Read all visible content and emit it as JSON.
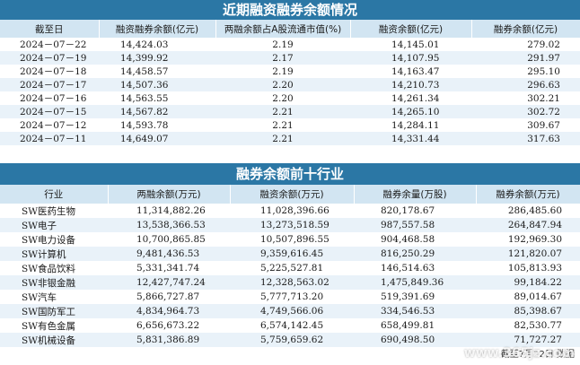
{
  "section1": {
    "title": "近期融资融券余额情况",
    "headers": [
      "截至日",
      "融资融券余额(亿元)",
      "两融余额占A股流通市值(%)",
      "融资余额(亿元)",
      "融券余额(亿元)"
    ],
    "rows": [
      [
        "2024－07－22",
        "14,424.03",
        "2.19",
        "14,145.01",
        "279.02"
      ],
      [
        "2024－07－19",
        "14,399.92",
        "2.17",
        "14,107.95",
        "291.97"
      ],
      [
        "2024－07－18",
        "14,458.57",
        "2.19",
        "14,163.47",
        "295.10"
      ],
      [
        "2024－07－17",
        "14,507.36",
        "2.20",
        "14,210.73",
        "296.63"
      ],
      [
        "2024－07－16",
        "14,563.55",
        "2.20",
        "14,261.34",
        "302.21"
      ],
      [
        "2024－07－15",
        "14,567.82",
        "2.21",
        "14,265.10",
        "302.72"
      ],
      [
        "2024－07－12",
        "14,593.78",
        "2.21",
        "14,284.11",
        "309.67"
      ],
      [
        "2024－07－11",
        "14,649.07",
        "2.21",
        "14,331.44",
        "317.63"
      ]
    ]
  },
  "section2": {
    "title": "融券余额前十行业",
    "headers": [
      "行业",
      "两融余额(万元)",
      "融资余额(万元)",
      "融券余量(万股)",
      "融券余额(万元)"
    ],
    "rows": [
      [
        "SW医药生物",
        "11,314,882.26",
        "11,028,396.66",
        "820,178.67",
        "286,485.60"
      ],
      [
        "SW电子",
        "13,538,366.53",
        "13,273,518.59",
        "987,557.58",
        "264,847.94"
      ],
      [
        "SW电力设备",
        "10,700,865.85",
        "10,507,896.55",
        "904,468.58",
        "192,969.30"
      ],
      [
        "SW计算机",
        "9,481,436.53",
        "9,359,616.45",
        "816,250.29",
        "121,820.07"
      ],
      [
        "SW食品饮料",
        "5,331,341.74",
        "5,225,527.81",
        "146,514.63",
        "105,813.93"
      ],
      [
        "SW非银金融",
        "12,427,747.24",
        "12,328,563.02",
        "1,475,849.36",
        "99,184.22"
      ],
      [
        "SW汽车",
        "5,866,727.87",
        "5,777,713.20",
        "519,391.69",
        "89,014.67"
      ],
      [
        "SW国防军工",
        "4,834,964.73",
        "4,749,566.06",
        "334,546.53",
        "85,398.67"
      ],
      [
        "SW有色金属",
        "6,656,673.22",
        "6,574,142.45",
        "658,499.81",
        "82,530.77"
      ],
      [
        "SW机械设备",
        "5,831,386.89",
        "5,759,659.62",
        "690,498.50",
        "71,727.27"
      ]
    ]
  },
  "footer": "截至7月22日 数据",
  "watermark": "www.365jz.com"
}
